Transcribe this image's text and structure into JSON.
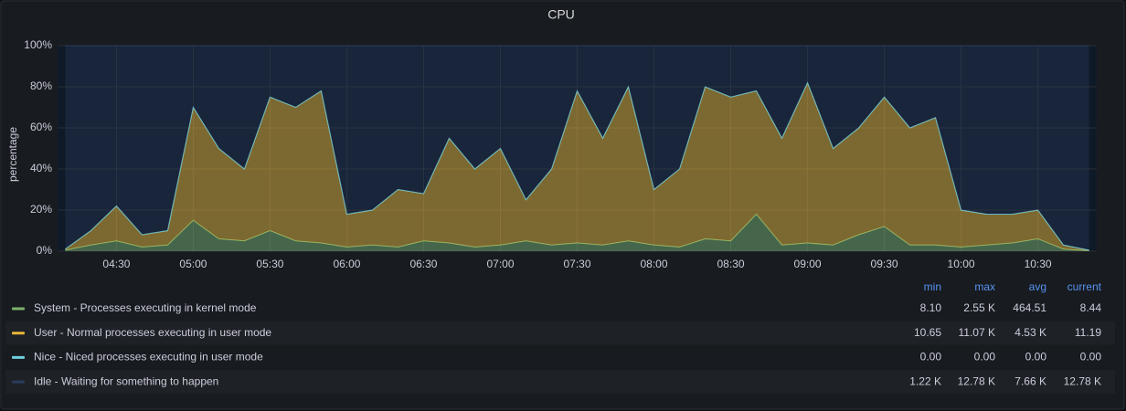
{
  "chart_data": {
    "type": "stacked-area",
    "title": "CPU",
    "y_label": "percentage",
    "x": [
      "04:10",
      "04:20",
      "04:30",
      "04:40",
      "04:50",
      "05:00",
      "05:10",
      "05:20",
      "05:30",
      "05:40",
      "05:50",
      "06:00",
      "06:10",
      "06:20",
      "06:30",
      "06:40",
      "06:50",
      "07:00",
      "07:10",
      "07:20",
      "07:30",
      "07:40",
      "07:50",
      "08:00",
      "08:10",
      "08:20",
      "08:30",
      "08:40",
      "08:50",
      "09:00",
      "09:10",
      "09:20",
      "09:30",
      "09:40",
      "09:50",
      "10:00",
      "10:10",
      "10:20",
      "10:30",
      "10:40",
      "10:50"
    ],
    "xlim": [
      "04:07",
      "10:53"
    ],
    "xticks": [
      "04:30",
      "05:00",
      "05:30",
      "06:00",
      "06:30",
      "07:00",
      "07:30",
      "08:00",
      "08:30",
      "09:00",
      "09:30",
      "10:00",
      "10:30"
    ],
    "ylim": [
      0,
      100
    ],
    "yticks": [
      {
        "value": 0,
        "label": "0%"
      },
      {
        "value": 20,
        "label": "20%"
      },
      {
        "value": 40,
        "label": "40%"
      },
      {
        "value": 60,
        "label": "60%"
      },
      {
        "value": 80,
        "label": "80%"
      },
      {
        "value": 100,
        "label": "100%"
      }
    ],
    "grid": true,
    "legend_columns": [
      "min",
      "max",
      "avg",
      "current"
    ],
    "series": [
      {
        "name": "System - Processes executing in kernel mode",
        "color": "#7eb26d",
        "values": [
          0.5,
          3,
          5,
          2,
          3,
          15,
          6,
          5,
          10,
          5,
          4,
          2,
          3,
          2,
          5,
          4,
          2,
          3,
          5,
          3,
          4,
          3,
          5,
          3,
          2,
          6,
          5,
          18,
          3,
          4,
          3,
          8,
          12,
          3,
          3,
          2,
          3,
          4,
          6,
          1,
          0.2
        ],
        "stats": [
          "8.10",
          "2.55 K",
          "464.51",
          "8.44"
        ]
      },
      {
        "name": "User - Normal processes executing in user mode",
        "color": "#eab839",
        "values": [
          0.5,
          7,
          17,
          6,
          7,
          55,
          44,
          35,
          65,
          65,
          74,
          16,
          17,
          28,
          23,
          51,
          38,
          47,
          20,
          37,
          74,
          52,
          75,
          27,
          38,
          74,
          70,
          60,
          52,
          78,
          47,
          52,
          63,
          57,
          62,
          18,
          15,
          14,
          14,
          2,
          0.3
        ],
        "stats": [
          "10.65",
          "11.07 K",
          "4.53 K",
          "11.19"
        ]
      },
      {
        "name": "Nice - Niced processes executing in user mode",
        "color": "#6ed0e0",
        "values": [
          0,
          0,
          0,
          0,
          0,
          0,
          0,
          0,
          0,
          0,
          0,
          0,
          0,
          0,
          0,
          0,
          0,
          0,
          0,
          0,
          0,
          0,
          0,
          0,
          0,
          0,
          0,
          0,
          0,
          0,
          0,
          0,
          0,
          0,
          0,
          0,
          0,
          0,
          0,
          0,
          0
        ],
        "stats": [
          "0.00",
          "0.00",
          "0.00",
          "0.00"
        ]
      },
      {
        "name": "Idle - Waiting for something to happen",
        "color": "#2a3d5c",
        "values": [
          99,
          90,
          78,
          92,
          90,
          30,
          50,
          60,
          25,
          30,
          22,
          82,
          80,
          70,
          72,
          45,
          60,
          50,
          75,
          60,
          22,
          45,
          20,
          70,
          60,
          20,
          25,
          22,
          45,
          18,
          50,
          40,
          25,
          40,
          35,
          80,
          82,
          82,
          80,
          97,
          99.5
        ],
        "stats": [
          "1.22 K",
          "12.78 K",
          "7.66 K",
          "12.78 K"
        ]
      }
    ]
  }
}
